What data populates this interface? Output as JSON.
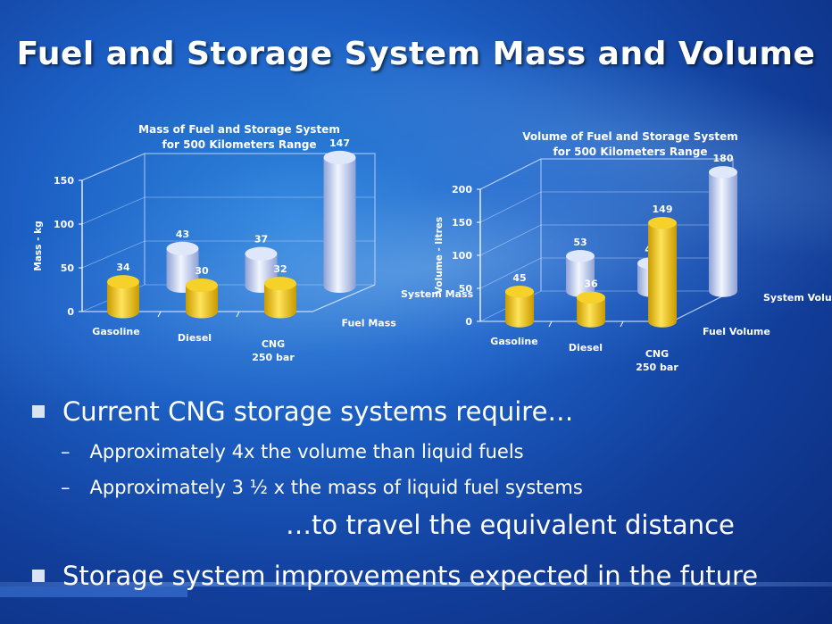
{
  "slide": {
    "title": "Fuel and Storage System Mass and Volume",
    "bullets": [
      {
        "text": "Current CNG storage systems require…",
        "subitems": [
          "Approximately 4x  the volume  than liquid fuels",
          "Approximately  3 ½ x the mass of liquid fuel systems"
        ]
      },
      {
        "text": "…to travel the equivalent distance"
      },
      {
        "text": "Storage system improvements expected in the future"
      }
    ],
    "sub_marker": "–"
  },
  "colors": {
    "fuel": "#e8b80c",
    "system": "#b8c6ec"
  },
  "chart_data": [
    {
      "type": "bar",
      "title": [
        "Mass of Fuel and Storage System",
        "for 500 Kilometers Range"
      ],
      "ylabel": "Mass - kg",
      "ylim": [
        0,
        150
      ],
      "yticks": [
        0,
        50,
        100,
        150
      ],
      "categories": [
        [
          "Gasoline"
        ],
        [
          "Diesel"
        ],
        [
          "CNG",
          "250 bar"
        ]
      ],
      "series": [
        {
          "name": "Fuel Mass",
          "values": [
            34,
            30,
            32
          ]
        },
        {
          "name": "System Mass",
          "values": [
            43,
            37,
            147
          ]
        }
      ]
    },
    {
      "type": "bar",
      "title": [
        "Volume of Fuel and Storage System",
        "for 500 Kilometers Range"
      ],
      "ylabel": "Volume - litres",
      "ylim": [
        0,
        200
      ],
      "yticks": [
        0,
        50,
        100,
        150,
        200
      ],
      "categories": [
        [
          "Gasoline"
        ],
        [
          "Diesel"
        ],
        [
          "CNG",
          "250 bar"
        ]
      ],
      "series": [
        {
          "name": "Fuel Volume",
          "values": [
            45,
            36,
            149
          ]
        },
        {
          "name": "System Volume",
          "values": [
            53,
            42,
            180
          ]
        }
      ]
    }
  ]
}
